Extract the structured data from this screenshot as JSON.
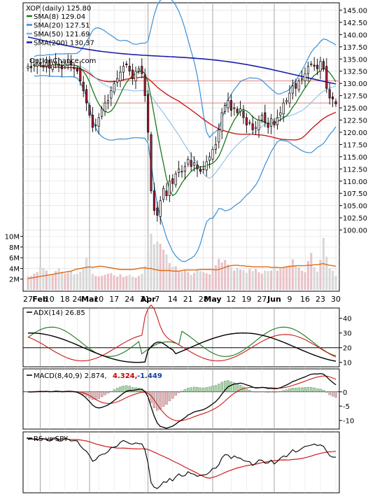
{
  "chart_data": [
    {
      "type": "candlestick",
      "title": "XOP (daily) 125.80",
      "source_label": "OptionChance.com",
      "legend": [
        {
          "label": "SMA(8) 129.04",
          "color": "#1a7a1a",
          "style": "line"
        },
        {
          "label": "SMA(20) 127.51",
          "color": "#3a8fd6",
          "style": "line"
        },
        {
          "label": "SMA(50) 121.69",
          "color": "#7fb8e8",
          "style": "line"
        },
        {
          "label": "SMA(200) 130.37",
          "color": "#1a1aaa",
          "style": "line"
        }
      ],
      "price_ylim": [
        97.5,
        146.5
      ],
      "price_ticks": [
        "100.00",
        "102.50",
        "105.00",
        "107.50",
        "110.00",
        "112.50",
        "115.00",
        "117.50",
        "120.00",
        "122.50",
        "125.00",
        "127.50",
        "130.00",
        "132.50",
        "135.00",
        "137.50",
        "140.00",
        "142.50",
        "145.00"
      ],
      "horizontal_levels": [
        130.5,
        126.0
      ],
      "volume_ticks": [
        "2M",
        "4M",
        "6M",
        "8M",
        "10M"
      ],
      "volume_ylim": [
        0,
        11000000
      ],
      "x_tick_labels": [
        {
          "label": "27",
          "idx": 0
        },
        {
          "label": "Feb",
          "idx": 4,
          "bold": true
        },
        {
          "label": "10",
          "idx": 7
        },
        {
          "label": "18",
          "idx": 12
        },
        {
          "label": "24",
          "idx": 16
        },
        {
          "label": "Mar",
          "idx": 20,
          "bold": true
        },
        {
          "label": "10",
          "idx": 23
        },
        {
          "label": "17",
          "idx": 28
        },
        {
          "label": "24",
          "idx": 33
        },
        {
          "label": "31",
          "idx": 38
        },
        {
          "label": "Apr",
          "idx": 39,
          "bold": true
        },
        {
          "label": "7",
          "idx": 42
        },
        {
          "label": "14",
          "idx": 47
        },
        {
          "label": "21",
          "idx": 52
        },
        {
          "label": "28",
          "idx": 57
        },
        {
          "label": "May",
          "idx": 60,
          "bold": true
        },
        {
          "label": "12",
          "idx": 66
        },
        {
          "label": "19",
          "idx": 71
        },
        {
          "label": "27",
          "idx": 76
        },
        {
          "label": "Jun",
          "idx": 80,
          "bold": true
        },
        {
          "label": "9",
          "idx": 85
        },
        {
          "label": "16",
          "idx": 90
        },
        {
          "label": "23",
          "idx": 95
        },
        {
          "label": "30",
          "idx": 100
        }
      ],
      "close": [
        133.5,
        133.2,
        133.8,
        134.0,
        133.9,
        133.5,
        134.2,
        133.1,
        133.8,
        134.5,
        133.6,
        133.0,
        134.0,
        134.3,
        133.8,
        133.0,
        132.5,
        130.5,
        128.5,
        126.0,
        123.5,
        121.0,
        121.5,
        123.0,
        124.8,
        126.0,
        126.5,
        128.5,
        130.0,
        131.0,
        132.3,
        133.5,
        133.8,
        132.5,
        131.0,
        132.5,
        133.0,
        132.0,
        127.5,
        120.0,
        108.0,
        104.0,
        103.0,
        106.0,
        108.5,
        107.0,
        110.0,
        109.5,
        111.5,
        112.5,
        112.0,
        113.0,
        114.5,
        113.0,
        113.8,
        112.5,
        112.0,
        112.5,
        114.0,
        115.0,
        116.5,
        117.5,
        120.5,
        124.0,
        125.5,
        126.5,
        124.5,
        125.0,
        124.0,
        124.8,
        123.0,
        121.5,
        122.0,
        120.5,
        121.0,
        122.5,
        123.5,
        122.0,
        121.0,
        122.8,
        121.5,
        123.0,
        124.0,
        126.0,
        126.5,
        128.0,
        129.5,
        129.0,
        130.5,
        131.0,
        132.0,
        133.5,
        134.0,
        133.5,
        133.0,
        134.5,
        133.0,
        129.0,
        127.0,
        126.8,
        125.8
      ],
      "volume_M": [
        2.5,
        2.6,
        3.0,
        3.3,
        4.3,
        4.1,
        3.6,
        2.9,
        2.8,
        3.5,
        4.0,
        3.4,
        3.0,
        3.2,
        3.5,
        2.9,
        3.0,
        3.4,
        4.1,
        6.0,
        4.5,
        3.0,
        2.6,
        2.5,
        2.6,
        2.8,
        3.0,
        3.1,
        2.7,
        2.5,
        2.9,
        2.4,
        2.6,
        2.8,
        2.5,
        2.3,
        2.6,
        3.0,
        4.5,
        7.4,
        10.5,
        8.5,
        9.0,
        8.6,
        7.5,
        6.6,
        5.0,
        4.3,
        4.4,
        3.5,
        3.4,
        3.7,
        3.3,
        2.8,
        3.2,
        3.9,
        3.5,
        3.3,
        3.1,
        2.9,
        3.8,
        4.6,
        5.8,
        5.1,
        5.6,
        4.7,
        4.2,
        3.6,
        4.1,
        3.8,
        3.7,
        3.2,
        3.9,
        3.5,
        3.9,
        3.3,
        3.0,
        3.6,
        3.5,
        3.6,
        4.1,
        3.6,
        3.9,
        4.1,
        4.4,
        4.6,
        5.7,
        4.6,
        4.2,
        3.6,
        3.3,
        5.4,
        6.9,
        4.2,
        3.4,
        5.6,
        9.7,
        6.2,
        4.0,
        3.6,
        2.6
      ],
      "volume_ma_M": [
        2.1,
        2.2,
        2.3,
        2.4,
        2.5,
        2.6,
        2.7,
        2.8,
        2.9,
        3.0,
        3.1,
        3.2,
        3.3,
        3.4,
        3.5,
        3.7,
        3.9,
        4.0,
        4.1,
        4.2,
        4.3,
        4.2,
        4.3,
        4.4,
        4.4,
        4.3,
        4.2,
        4.1,
        4.0,
        3.9,
        3.8,
        3.8,
        3.8,
        3.8,
        3.8,
        3.9,
        4.0,
        4.1,
        4.1,
        4.0,
        4.0,
        3.8,
        3.7,
        3.6,
        3.6,
        3.6,
        3.6,
        3.5,
        3.5,
        3.5,
        3.6,
        3.7,
        3.7,
        3.7,
        3.7,
        3.7,
        3.8,
        3.8,
        3.8,
        3.8,
        3.8,
        3.7,
        3.8,
        4.0,
        4.2,
        4.4,
        4.5,
        4.6,
        4.6,
        4.5,
        4.5,
        4.4,
        4.4,
        4.3,
        4.3,
        4.3,
        4.3,
        4.3,
        4.3,
        4.2,
        4.2,
        4.2,
        4.1,
        4.2,
        4.3,
        4.4,
        4.4,
        4.5,
        4.5,
        4.5,
        4.5,
        4.6,
        4.6,
        4.7,
        4.7,
        4.8,
        4.9,
        4.7,
        4.6,
        4.5,
        4.4
      ]
    },
    {
      "type": "line",
      "title": "ADX(14) 26.85",
      "ylim": [
        7,
        47
      ],
      "y_ticks": [
        "40",
        "30",
        "20",
        "10"
      ],
      "reference_line": 20,
      "series": []
    },
    {
      "type": "line",
      "title": "MACD(8,40,9) 2.874,",
      "labels": [
        {
          "text": "4.324,",
          "color": "#cc0000"
        },
        {
          "text": "-1.449",
          "color": "#1a3f9f"
        }
      ],
      "ylim": [
        -13,
        8
      ],
      "y_ticks": [
        "0",
        "-5",
        "-10"
      ],
      "series": []
    },
    {
      "type": "line",
      "title": "RS vs SPY",
      "ylim": [
        0,
        1
      ],
      "series": []
    }
  ]
}
